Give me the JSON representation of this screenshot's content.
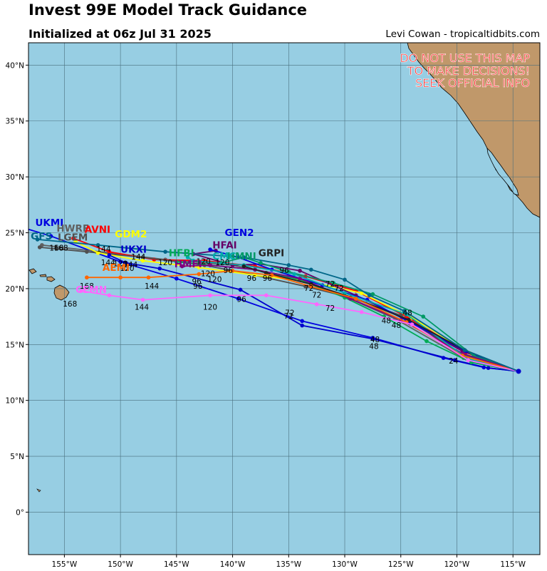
{
  "header": {
    "title": "Invest 99E Model Track Guidance",
    "subtitle": "Initialized at 06z Jul 31 2025",
    "credit": "Levi Cowan - tropicaltidbits.com"
  },
  "warning": {
    "lines": [
      "DO NOT USE THIS MAP",
      "TO MAKE DECISIONS!",
      "SEEK OFFICIAL INFO"
    ],
    "color": "#ff2a2a"
  },
  "map": {
    "lon_range": [
      -158.2,
      -112.6
    ],
    "lat_range": [
      -3.8,
      42.0
    ],
    "ocean_color": "#97cee3",
    "land_color": "#c0986a",
    "lat_ticks": [
      {
        "lat": 40,
        "label": "40°N"
      },
      {
        "lat": 35,
        "label": "35°N"
      },
      {
        "lat": 30,
        "label": "30°N"
      },
      {
        "lat": 25,
        "label": "25°N"
      },
      {
        "lat": 20,
        "label": "20°N"
      },
      {
        "lat": 15,
        "label": "15°N"
      },
      {
        "lat": 10,
        "label": "10°N"
      },
      {
        "lat": 5,
        "label": "5°N"
      },
      {
        "lat": 0,
        "label": "0°"
      }
    ],
    "lon_ticks": [
      {
        "lon": -155,
        "label": "155°W"
      },
      {
        "lon": -150,
        "label": "150°W"
      },
      {
        "lon": -145,
        "label": "145°W"
      },
      {
        "lon": -140,
        "label": "140°W"
      },
      {
        "lon": -135,
        "label": "135°W"
      },
      {
        "lon": -130,
        "label": "130°W"
      },
      {
        "lon": -125,
        "label": "125°W"
      },
      {
        "lon": -120,
        "label": "120°W"
      },
      {
        "lon": -115,
        "label": "115°W"
      }
    ]
  },
  "origin": {
    "lon": -114.5,
    "lat": 12.6
  },
  "tracks": [
    {
      "name": "UKMI",
      "color": "#0000e0",
      "label_at": [
        -157.6,
        25.6
      ],
      "points": [
        [
          -114.5,
          12.6
        ],
        [
          -117.6,
          12.95
        ],
        [
          -121.2,
          13.8
        ],
        [
          -127.5,
          15.6
        ],
        [
          -133.8,
          17.1
        ],
        [
          -139.5,
          19.1
        ],
        [
          -145,
          20.9
        ],
        [
          -150,
          22.4
        ],
        [
          -156.2,
          24.7
        ],
        [
          -158.5,
          25.4
        ]
      ]
    },
    {
      "name": "HWRF",
      "color": "#606060",
      "label_at": [
        -155.7,
        25.1
      ],
      "points": [
        [
          -114.5,
          12.6
        ],
        [
          -119.4,
          13.8
        ],
        [
          -125.5,
          17.3
        ],
        [
          -130,
          19.3
        ],
        [
          -135,
          21.1
        ],
        [
          -140,
          22.1
        ],
        [
          -146,
          22.6
        ],
        [
          -151,
          23.2
        ],
        [
          -157,
          23.9
        ]
      ]
    },
    {
      "name": "AVNI",
      "color": "#ff0000",
      "label_at": [
        -153.2,
        25.0
      ],
      "points": [
        [
          -114.5,
          12.6
        ],
        [
          -119.2,
          14.3
        ],
        [
          -124.5,
          17.5
        ],
        [
          -129,
          19.8
        ],
        [
          -133.5,
          21.1
        ],
        [
          -138,
          22.0
        ],
        [
          -142.5,
          22.5
        ],
        [
          -147,
          22.6
        ],
        [
          -151,
          23.3
        ],
        [
          -154.2,
          24.5
        ]
      ]
    },
    {
      "name": "LGEM",
      "color": "#505050",
      "label_at": [
        -155.6,
        24.3
      ],
      "points": [
        [
          -114.5,
          12.6
        ],
        [
          -119.5,
          14.1
        ],
        [
          -125,
          17.6
        ],
        [
          -129.5,
          19.2
        ],
        [
          -133.5,
          20.2
        ],
        [
          -138,
          21.2
        ],
        [
          -142.5,
          22.1
        ],
        [
          -148,
          22.8
        ],
        [
          -153,
          23.3
        ],
        [
          -157.2,
          23.7
        ]
      ]
    },
    {
      "name": "GDM2",
      "color": "#ffff00",
      "label_at": [
        -150.5,
        24.6
      ],
      "points": [
        [
          -114.5,
          12.6
        ],
        [
          -118.8,
          14.2
        ],
        [
          -124,
          17.4
        ],
        [
          -128.5,
          19.6
        ],
        [
          -133,
          20.6
        ],
        [
          -138,
          21.2
        ],
        [
          -143,
          21.9
        ],
        [
          -148,
          22.5
        ],
        [
          -152,
          23.2
        ],
        [
          -154,
          24.2
        ]
      ]
    },
    {
      "name": "UKXI",
      "color": "#0000cc",
      "label_at": [
        -150.0,
        23.2
      ],
      "points": [
        [
          -114.5,
          12.6
        ],
        [
          -117.2,
          12.9
        ],
        [
          -120.2,
          13.6
        ],
        [
          -127.5,
          15.5
        ],
        [
          -133.8,
          16.7
        ],
        [
          -139.3,
          19.9
        ],
        [
          -146.5,
          21.8
        ],
        [
          -149.5,
          22.3
        ],
        [
          -151,
          23.0
        ]
      ]
    },
    {
      "name": "HFAI",
      "color": "#660066",
      "label_at": [
        -141.8,
        23.6
      ],
      "points": [
        [
          -114.5,
          12.6
        ],
        [
          -119.5,
          14.4
        ],
        [
          -124.5,
          17.2
        ],
        [
          -129,
          19.4
        ],
        [
          -134,
          21.6
        ],
        [
          -137.5,
          22.2
        ],
        [
          -140,
          22.1
        ],
        [
          -143.5,
          23.1
        ],
        [
          -141.5,
          23.4
        ]
      ]
    },
    {
      "name": "GEN2",
      "color": "#0000e0",
      "label_at": [
        -140.7,
        24.7
      ],
      "points": [
        [
          -114.5,
          12.6
        ],
        [
          -119.2,
          14.4
        ],
        [
          -124.2,
          17.0
        ],
        [
          -128,
          19.0
        ],
        [
          -132,
          20.3
        ],
        [
          -136.5,
          21.7
        ],
        [
          -139.5,
          22.8
        ],
        [
          -142,
          23.5
        ]
      ]
    },
    {
      "name": "HMNI",
      "color": "#009966",
      "label_at": [
        -140.5,
        22.6
      ],
      "points": [
        [
          -114.5,
          12.6
        ],
        [
          -118.5,
          14.0
        ],
        [
          -123,
          17.5
        ],
        [
          -127.5,
          19.5
        ],
        [
          -131,
          20.5
        ],
        [
          -135,
          21.5
        ],
        [
          -137.5,
          22.3
        ],
        [
          -139,
          22.8
        ],
        [
          -141,
          22.3
        ]
      ]
    },
    {
      "name": "HFBI",
      "color": "#00aa55",
      "label_at": [
        -145.7,
        22.9
      ],
      "points": [
        [
          -114.5,
          12.6
        ],
        [
          -118.7,
          13.4
        ],
        [
          -122.7,
          15.3
        ],
        [
          -126.5,
          17.5
        ],
        [
          -130,
          19.2
        ],
        [
          -134,
          20.8
        ],
        [
          -138,
          21.7
        ],
        [
          -142,
          22.1
        ],
        [
          -145,
          22.4
        ]
      ]
    },
    {
      "name": "HMFI",
      "color": "#800080",
      "label_at": [
        -145.2,
        21.9
      ],
      "points": [
        [
          -114.5,
          12.6
        ],
        [
          -119.5,
          14.2
        ],
        [
          -125,
          17.2
        ],
        [
          -129.5,
          19.1
        ],
        [
          -134,
          20.9
        ],
        [
          -138,
          21.7
        ],
        [
          -142,
          22.1
        ],
        [
          -144.5,
          22.0
        ]
      ]
    },
    {
      "name": "CMC",
      "color": "#00aaaa",
      "label_at": [
        -141.8,
        22.6
      ],
      "points": [
        [
          -114.5,
          12.6
        ],
        [
          -119,
          13.7
        ],
        [
          -124.5,
          17.7
        ],
        [
          -130,
          19.6
        ],
        [
          -134.5,
          21.3
        ],
        [
          -139,
          22.1
        ],
        [
          -143.5,
          22.5
        ],
        [
          -144,
          22.8
        ]
      ]
    },
    {
      "name": "GRPI",
      "color": "#222222",
      "label_at": [
        -137.7,
        22.9
      ],
      "points": [
        [
          -114.5,
          12.6
        ],
        [
          -119.3,
          14.5
        ],
        [
          -124.3,
          17.2
        ],
        [
          -129,
          19.1
        ],
        [
          -133,
          20.4
        ],
        [
          -137,
          21.4
        ],
        [
          -139,
          22.0
        ]
      ]
    },
    {
      "name": "AEMI",
      "color": "#ff6600",
      "label_at": [
        -151.6,
        21.6
      ],
      "points": [
        [
          -114.5,
          12.6
        ],
        [
          -119.5,
          14.0
        ],
        [
          -124.5,
          17.0
        ],
        [
          -129,
          19.1
        ],
        [
          -133,
          20.2
        ],
        [
          -136.5,
          21.2
        ],
        [
          -140,
          21.6
        ],
        [
          -143,
          21.3
        ],
        [
          -147.5,
          21.0
        ],
        [
          -150,
          21.0
        ],
        [
          -153,
          21.0
        ]
      ]
    },
    {
      "name": "CEMN",
      "color": "#ff66ff",
      "label_at": [
        -154.0,
        19.6
      ],
      "points": [
        [
          -114.5,
          12.6
        ],
        [
          -119,
          13.6
        ],
        [
          -124,
          16.8
        ],
        [
          -128.5,
          17.9
        ],
        [
          -132.5,
          18.6
        ],
        [
          -137,
          19.4
        ],
        [
          -142,
          19.4
        ],
        [
          -148,
          19.0
        ],
        [
          -151,
          19.4
        ],
        [
          -153.5,
          19.8
        ]
      ]
    },
    {
      "name": "GFS",
      "color": "#006688",
      "label_at": [
        -158,
        24.4
      ],
      "points": [
        [
          -114.5,
          12.6
        ],
        [
          -119.3,
          14.5
        ],
        [
          -124.7,
          18.0
        ],
        [
          -127.8,
          19.4
        ],
        [
          -130,
          20.8
        ],
        [
          -133,
          21.7
        ],
        [
          -135,
          22.1
        ],
        [
          -139,
          22.8
        ],
        [
          -146,
          23.3
        ],
        [
          -152,
          23.9
        ],
        [
          -157.4,
          24.4
        ]
      ]
    }
  ],
  "hour_labels": [
    {
      "t": "24",
      "lon": -120.3,
      "lat": 13.3
    },
    {
      "t": "48",
      "lon": -127.4,
      "lat": 14.6
    },
    {
      "t": "48",
      "lon": -127.3,
      "lat": 15.2
    },
    {
      "t": "48",
      "lon": -125.4,
      "lat": 16.5
    },
    {
      "t": "48",
      "lon": -126.3,
      "lat": 16.9
    },
    {
      "t": "48",
      "lon": -124.4,
      "lat": 17.6
    },
    {
      "t": "72",
      "lon": -130.5,
      "lat": 19.8
    },
    {
      "t": "72",
      "lon": -131.3,
      "lat": 20.2
    },
    {
      "t": "72",
      "lon": -133.2,
      "lat": 19.8
    },
    {
      "t": "72",
      "lon": -132.5,
      "lat": 19.2
    },
    {
      "t": "72",
      "lon": -131.3,
      "lat": 18.0
    },
    {
      "t": "72",
      "lon": -135.0,
      "lat": 17.3
    },
    {
      "t": "72",
      "lon": -134.9,
      "lat": 17.6
    },
    {
      "t": "96",
      "lon": -136.9,
      "lat": 20.7
    },
    {
      "t": "96",
      "lon": -139.2,
      "lat": 18.8
    },
    {
      "t": "96",
      "lon": -138.3,
      "lat": 20.7
    },
    {
      "t": "96",
      "lon": -140.4,
      "lat": 21.4
    },
    {
      "t": "96",
      "lon": -143.1,
      "lat": 20.0
    },
    {
      "t": "96",
      "lon": -143.2,
      "lat": 20.4
    },
    {
      "t": "96",
      "lon": -135.4,
      "lat": 21.4
    },
    {
      "t": "120",
      "lon": -142.0,
      "lat": 18.1
    },
    {
      "t": "120",
      "lon": -141.6,
      "lat": 20.6
    },
    {
      "t": "120",
      "lon": -142.2,
      "lat": 21.1
    },
    {
      "t": "120",
      "lon": -149.4,
      "lat": 21.6
    },
    {
      "t": "120",
      "lon": -150.0,
      "lat": 22.0
    },
    {
      "t": "120",
      "lon": -146.0,
      "lat": 22.1
    },
    {
      "t": "120",
      "lon": -140.9,
      "lat": 22.1
    },
    {
      "t": "120",
      "lon": -142.6,
      "lat": 22.2
    },
    {
      "t": "144",
      "lon": -148.1,
      "lat": 18.1
    },
    {
      "t": "144",
      "lon": -147.2,
      "lat": 20.0
    },
    {
      "t": "144",
      "lon": -149.1,
      "lat": 21.9
    },
    {
      "t": "144",
      "lon": -151.1,
      "lat": 22.1
    },
    {
      "t": "144",
      "lon": -148.4,
      "lat": 22.6
    },
    {
      "t": "144",
      "lon": -151.5,
      "lat": 23.3
    },
    {
      "t": "168",
      "lon": -154.5,
      "lat": 18.4
    },
    {
      "t": "168",
      "lon": -153.0,
      "lat": 20.0
    },
    {
      "t": "168",
      "lon": -155.7,
      "lat": 23.4
    },
    {
      "t": "168",
      "lon": -155.3,
      "lat": 23.4
    }
  ]
}
